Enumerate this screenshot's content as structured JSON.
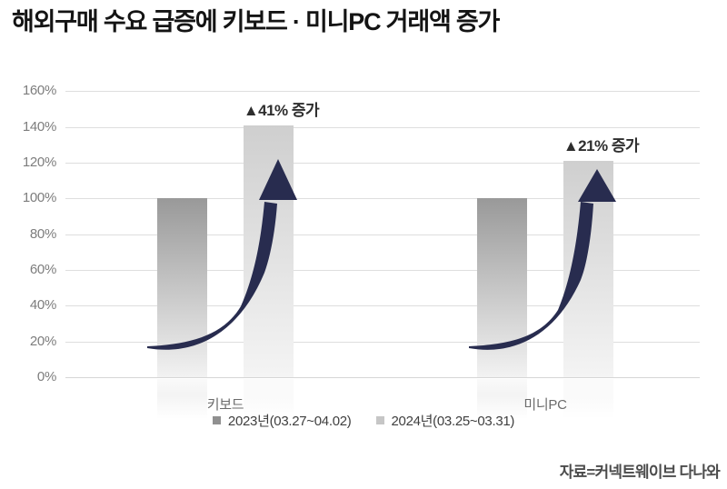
{
  "title": {
    "part1": "해외구매 수요 급증에 ",
    "part2": "키보드 · 미니PC 거래액 증가"
  },
  "chart_data": {
    "type": "bar",
    "title": "해외구매 수요 급증에 키보드 · 미니PC 거래액 증가",
    "categories": [
      "키보드",
      "미니PC"
    ],
    "series": [
      {
        "name": "2023년(03.27~04.02)",
        "values": [
          100,
          100
        ],
        "color_top": "#999999",
        "color_bottom": "#f2f2f2",
        "legend_swatch": "#909090"
      },
      {
        "name": "2024년(03.25~03.31)",
        "values": [
          141,
          121
        ],
        "color_top": "#cfcfcf",
        "color_bottom": "#f4f4f4",
        "legend_swatch": "#c6c6c6"
      }
    ],
    "annotations": [
      {
        "text": "▲41% 증가",
        "group": 0
      },
      {
        "text": "▲21% 증가",
        "group": 1
      }
    ],
    "ylabel": "",
    "ylim": [
      0,
      160
    ],
    "ytick_step": 20,
    "ytick_format": "percent",
    "grid": true,
    "legend_position": "bottom",
    "arrow_color": "#282c4f",
    "gridline_color": "#dedede"
  },
  "source": "자료=커넥트웨이브 다나와"
}
